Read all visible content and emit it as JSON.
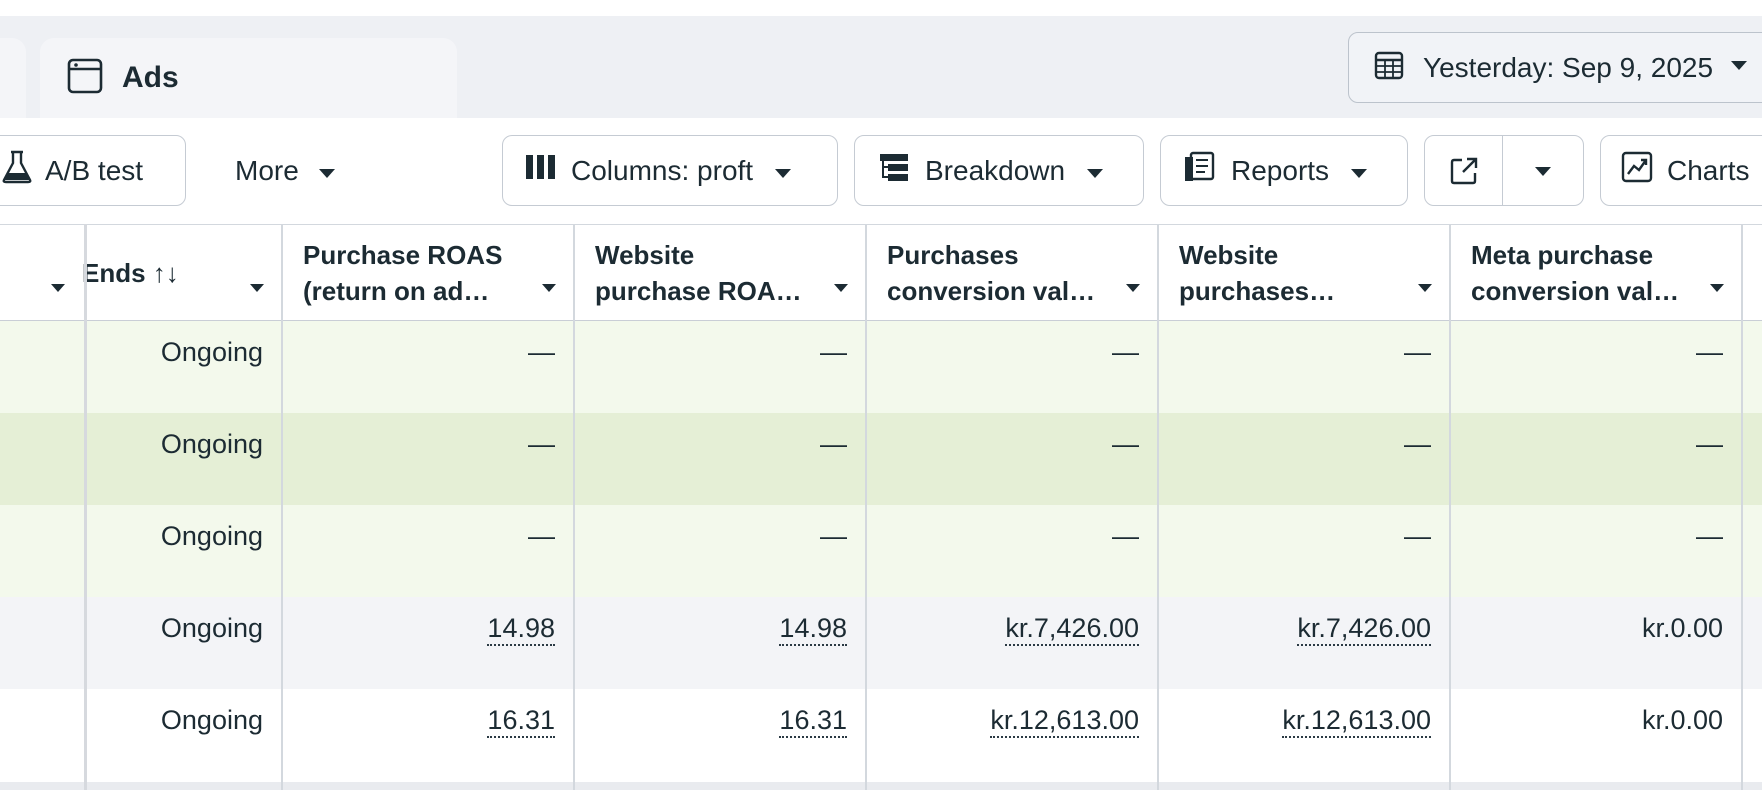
{
  "tabs": {
    "ads_label": "Ads"
  },
  "date_range": {
    "label": "Yesterday: Sep 9, 2025"
  },
  "toolbar": {
    "ab_test_label": "A/B test",
    "more_label": "More",
    "columns_label": "Columns: proft",
    "breakdown_label": "Breakdown",
    "reports_label": "Reports",
    "charts_label": "Charts"
  },
  "table": {
    "headers": {
      "ends": "Ends ↑↓",
      "purchase_roas": "Purchase ROAS\n(return on ad…",
      "website_purchase_roas": "Website\npurchase ROA…",
      "purchases_conversion_value": "Purchases\nconversion val…",
      "website_purchases": "Website\npurchases…",
      "meta_purchase_conversion_value": "Meta purchase\nconversion val…"
    },
    "rows": [
      {
        "ends": "Ongoing",
        "purchase_roas": "—",
        "website_purchase_roas": "—",
        "purchases_conversion_value": "—",
        "website_purchases": "—",
        "meta_purchase_conversion_value": "—"
      },
      {
        "ends": "Ongoing",
        "purchase_roas": "—",
        "website_purchase_roas": "—",
        "purchases_conversion_value": "—",
        "website_purchases": "—",
        "meta_purchase_conversion_value": "—"
      },
      {
        "ends": "Ongoing",
        "purchase_roas": "—",
        "website_purchase_roas": "—",
        "purchases_conversion_value": "—",
        "website_purchases": "—",
        "meta_purchase_conversion_value": "—"
      },
      {
        "ends": "Ongoing",
        "purchase_roas": "14.98",
        "website_purchase_roas": "14.98",
        "purchases_conversion_value": "kr.7,426.00",
        "website_purchases": "kr.7,426.00",
        "meta_purchase_conversion_value": "kr.0.00"
      },
      {
        "ends": "Ongoing",
        "purchase_roas": "16.31",
        "website_purchase_roas": "16.31",
        "purchases_conversion_value": "kr.12,613.00",
        "website_purchases": "kr.12,613.00",
        "meta_purchase_conversion_value": "kr.0.00"
      }
    ]
  },
  "colors": {
    "row_highlight": "#f3f9ec",
    "row_selected": "#e5efd6",
    "row_neutral": "#f3f4f7"
  }
}
